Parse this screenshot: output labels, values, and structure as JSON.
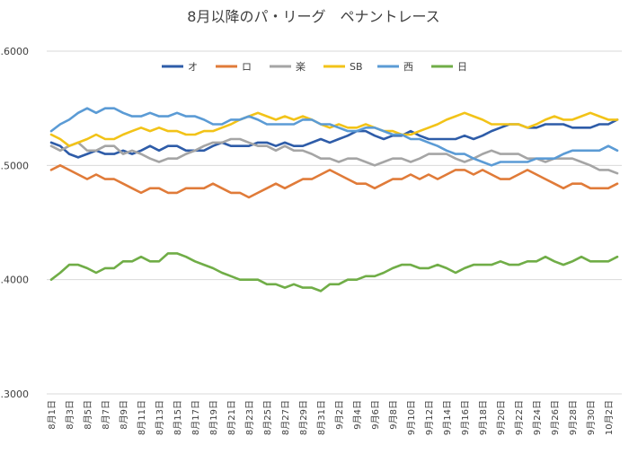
{
  "chart_data": {
    "type": "line",
    "title": "8月以降のパ・リーグ　ペナントレース",
    "ylim": [
      0.3,
      0.6
    ],
    "yticks": [
      "0.6000",
      "0.5000",
      "0.4000",
      "0.3000"
    ],
    "grid": true,
    "legend_position": "top",
    "x": [
      "8月1日",
      "8月2日",
      "8月3日",
      "8月4日",
      "8月5日",
      "8月6日",
      "8月7日",
      "8月8日",
      "8月9日",
      "8月10日",
      "8月11日",
      "8月12日",
      "8月13日",
      "8月14日",
      "8月15日",
      "8月16日",
      "8月17日",
      "8月18日",
      "8月19日",
      "8月20日",
      "8月21日",
      "8月22日",
      "8月23日",
      "8月24日",
      "8月25日",
      "8月26日",
      "8月27日",
      "8月28日",
      "8月29日",
      "8月30日",
      "8月31日",
      "9月1日",
      "9月2日",
      "9月3日",
      "9月4日",
      "9月5日",
      "9月6日",
      "9月7日",
      "9月8日",
      "9月9日",
      "9月10日",
      "9月11日",
      "9月12日",
      "9月13日",
      "9月14日",
      "9月15日",
      "9月16日",
      "9月17日",
      "9月18日",
      "9月19日",
      "9月20日",
      "9月21日",
      "9月22日",
      "9月23日",
      "9月24日",
      "9月25日",
      "9月26日",
      "9月27日",
      "9月28日",
      "9月29日",
      "9月30日",
      "10月1日",
      "10月2日",
      "10月3日"
    ],
    "x_tick_labels": [
      "8月1日",
      "8月3日",
      "8月5日",
      "8月7日",
      "8月9日",
      "8月11日",
      "8月13日",
      "8月15日",
      "8月17日",
      "8月19日",
      "8月21日",
      "8月23日",
      "8月25日",
      "8月27日",
      "8月29日",
      "8月31日",
      "9月2日",
      "9月4日",
      "9月6日",
      "9月8日",
      "9月10日",
      "9月12日",
      "9月14日",
      "9月16日",
      "9月18日",
      "9月20日",
      "9月22日",
      "9月24日",
      "9月26日",
      "9月28日",
      "9月30日",
      "10月2日"
    ],
    "series": [
      {
        "name": "オ",
        "color": "#2e5ca8",
        "values": [
          0.52,
          0.517,
          0.51,
          0.507,
          0.51,
          0.513,
          0.51,
          0.51,
          0.513,
          0.51,
          0.513,
          0.517,
          0.513,
          0.517,
          0.517,
          0.513,
          0.513,
          0.513,
          0.517,
          0.52,
          0.517,
          0.517,
          0.517,
          0.52,
          0.52,
          0.517,
          0.52,
          0.517,
          0.517,
          0.52,
          0.523,
          0.52,
          0.523,
          0.526,
          0.53,
          0.53,
          0.526,
          0.523,
          0.526,
          0.526,
          0.53,
          0.526,
          0.523,
          0.523,
          0.523,
          0.523,
          0.526,
          0.523,
          0.526,
          0.53,
          0.533,
          0.536,
          0.536,
          0.533,
          0.533,
          0.536,
          0.536,
          0.536,
          0.533,
          0.533,
          0.533,
          0.536,
          0.536,
          0.54
        ]
      },
      {
        "name": "ロ",
        "color": "#e07b39",
        "values": [
          0.496,
          0.5,
          0.496,
          0.492,
          0.488,
          0.492,
          0.488,
          0.488,
          0.484,
          0.48,
          0.476,
          0.48,
          0.48,
          0.476,
          0.476,
          0.48,
          0.48,
          0.48,
          0.484,
          0.48,
          0.476,
          0.476,
          0.472,
          0.476,
          0.48,
          0.484,
          0.48,
          0.484,
          0.488,
          0.488,
          0.492,
          0.496,
          0.492,
          0.488,
          0.484,
          0.484,
          0.48,
          0.484,
          0.488,
          0.488,
          0.492,
          0.488,
          0.492,
          0.488,
          0.492,
          0.496,
          0.496,
          0.492,
          0.496,
          0.492,
          0.488,
          0.488,
          0.492,
          0.496,
          0.492,
          0.488,
          0.484,
          0.48,
          0.484,
          0.484,
          0.48,
          0.48,
          0.48,
          0.484
        ]
      },
      {
        "name": "楽",
        "color": "#a5a5a5",
        "values": [
          0.517,
          0.513,
          0.517,
          0.52,
          0.513,
          0.513,
          0.517,
          0.517,
          0.51,
          0.513,
          0.51,
          0.506,
          0.503,
          0.506,
          0.506,
          0.51,
          0.513,
          0.517,
          0.52,
          0.52,
          0.523,
          0.523,
          0.52,
          0.517,
          0.517,
          0.513,
          0.517,
          0.513,
          0.513,
          0.51,
          0.506,
          0.506,
          0.503,
          0.506,
          0.506,
          0.503,
          0.5,
          0.503,
          0.506,
          0.506,
          0.503,
          0.506,
          0.51,
          0.51,
          0.51,
          0.506,
          0.503,
          0.506,
          0.51,
          0.513,
          0.51,
          0.51,
          0.51,
          0.506,
          0.506,
          0.503,
          0.506,
          0.506,
          0.506,
          0.503,
          0.5,
          0.496,
          0.496,
          0.493
        ]
      },
      {
        "name": "SB",
        "color": "#f2c318",
        "values": [
          0.527,
          0.523,
          0.517,
          0.52,
          0.523,
          0.527,
          0.523,
          0.523,
          0.527,
          0.53,
          0.533,
          0.53,
          0.533,
          0.53,
          0.53,
          0.527,
          0.527,
          0.53,
          0.53,
          0.533,
          0.536,
          0.54,
          0.543,
          0.546,
          0.543,
          0.54,
          0.543,
          0.54,
          0.543,
          0.54,
          0.536,
          0.533,
          0.536,
          0.533,
          0.533,
          0.536,
          0.533,
          0.53,
          0.53,
          0.527,
          0.527,
          0.53,
          0.533,
          0.536,
          0.54,
          0.543,
          0.546,
          0.543,
          0.54,
          0.536,
          0.536,
          0.536,
          0.536,
          0.533,
          0.536,
          0.54,
          0.543,
          0.54,
          0.54,
          0.543,
          0.546,
          0.543,
          0.54,
          0.54
        ]
      },
      {
        "name": "西",
        "color": "#5b9bd5",
        "values": [
          0.53,
          0.536,
          0.54,
          0.546,
          0.55,
          0.546,
          0.55,
          0.55,
          0.546,
          0.543,
          0.543,
          0.546,
          0.543,
          0.543,
          0.546,
          0.543,
          0.543,
          0.54,
          0.536,
          0.536,
          0.54,
          0.54,
          0.543,
          0.54,
          0.536,
          0.536,
          0.536,
          0.536,
          0.54,
          0.54,
          0.536,
          0.536,
          0.533,
          0.53,
          0.53,
          0.533,
          0.533,
          0.53,
          0.527,
          0.527,
          0.523,
          0.523,
          0.52,
          0.517,
          0.513,
          0.51,
          0.51,
          0.506,
          0.503,
          0.5,
          0.503,
          0.503,
          0.503,
          0.503,
          0.506,
          0.506,
          0.506,
          0.51,
          0.513,
          0.513,
          0.513,
          0.513,
          0.517,
          0.513
        ]
      },
      {
        "name": "日",
        "color": "#70ad47",
        "values": [
          0.4,
          0.406,
          0.413,
          0.413,
          0.41,
          0.406,
          0.41,
          0.41,
          0.416,
          0.416,
          0.42,
          0.416,
          0.416,
          0.423,
          0.423,
          0.42,
          0.416,
          0.413,
          0.41,
          0.406,
          0.403,
          0.4,
          0.4,
          0.4,
          0.396,
          0.396,
          0.393,
          0.396,
          0.393,
          0.393,
          0.39,
          0.396,
          0.396,
          0.4,
          0.4,
          0.403,
          0.403,
          0.406,
          0.41,
          0.413,
          0.413,
          0.41,
          0.41,
          0.413,
          0.41,
          0.406,
          0.41,
          0.413,
          0.413,
          0.413,
          0.416,
          0.413,
          0.413,
          0.416,
          0.416,
          0.42,
          0.416,
          0.413,
          0.416,
          0.42,
          0.416,
          0.416,
          0.416,
          0.42
        ]
      }
    ]
  }
}
